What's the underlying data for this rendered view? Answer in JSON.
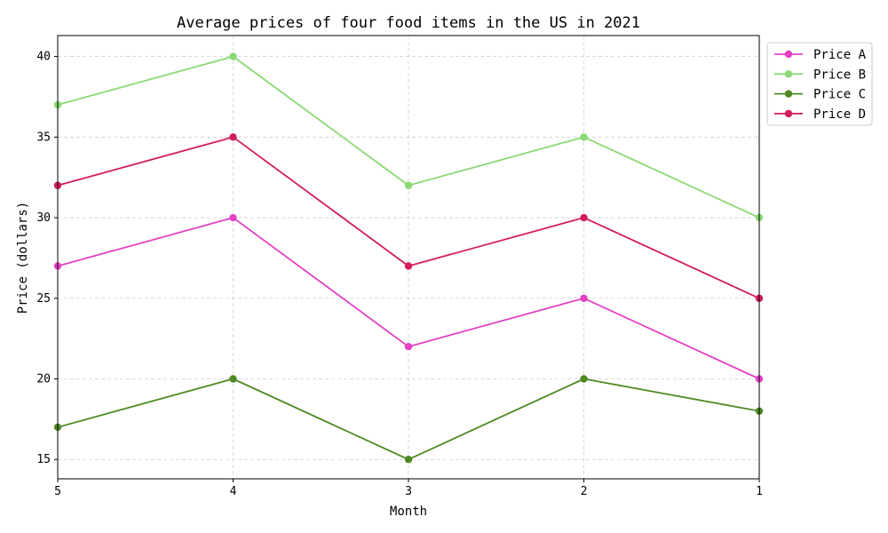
{
  "chart_data": {
    "type": "line",
    "title": "Average prices of four food items in the US in 2021",
    "xlabel": "Month",
    "ylabel": "Price (dollars)",
    "x": [
      5,
      4,
      3,
      2,
      1
    ],
    "x_tick_labels": [
      "5",
      "4",
      "3",
      "2",
      "1"
    ],
    "xlim": [
      5,
      1
    ],
    "ylim": [
      13.8,
      41.3
    ],
    "yticks": [
      15,
      20,
      25,
      30,
      35,
      40
    ],
    "grid": true,
    "legend_position": "outside-top-right",
    "series": [
      {
        "name": "Price A",
        "color": "#e542c4",
        "values": [
          27,
          30,
          22,
          25,
          20
        ]
      },
      {
        "name": "Price B",
        "color": "#8ad972",
        "values": [
          37,
          40,
          32,
          35,
          30
        ]
      },
      {
        "name": "Price C",
        "color": "#4e8a22",
        "values": [
          17,
          20,
          15,
          20,
          18
        ]
      },
      {
        "name": "Price D",
        "color": "#d21c5c",
        "values": [
          32,
          35,
          27,
          30,
          25
        ]
      }
    ]
  }
}
